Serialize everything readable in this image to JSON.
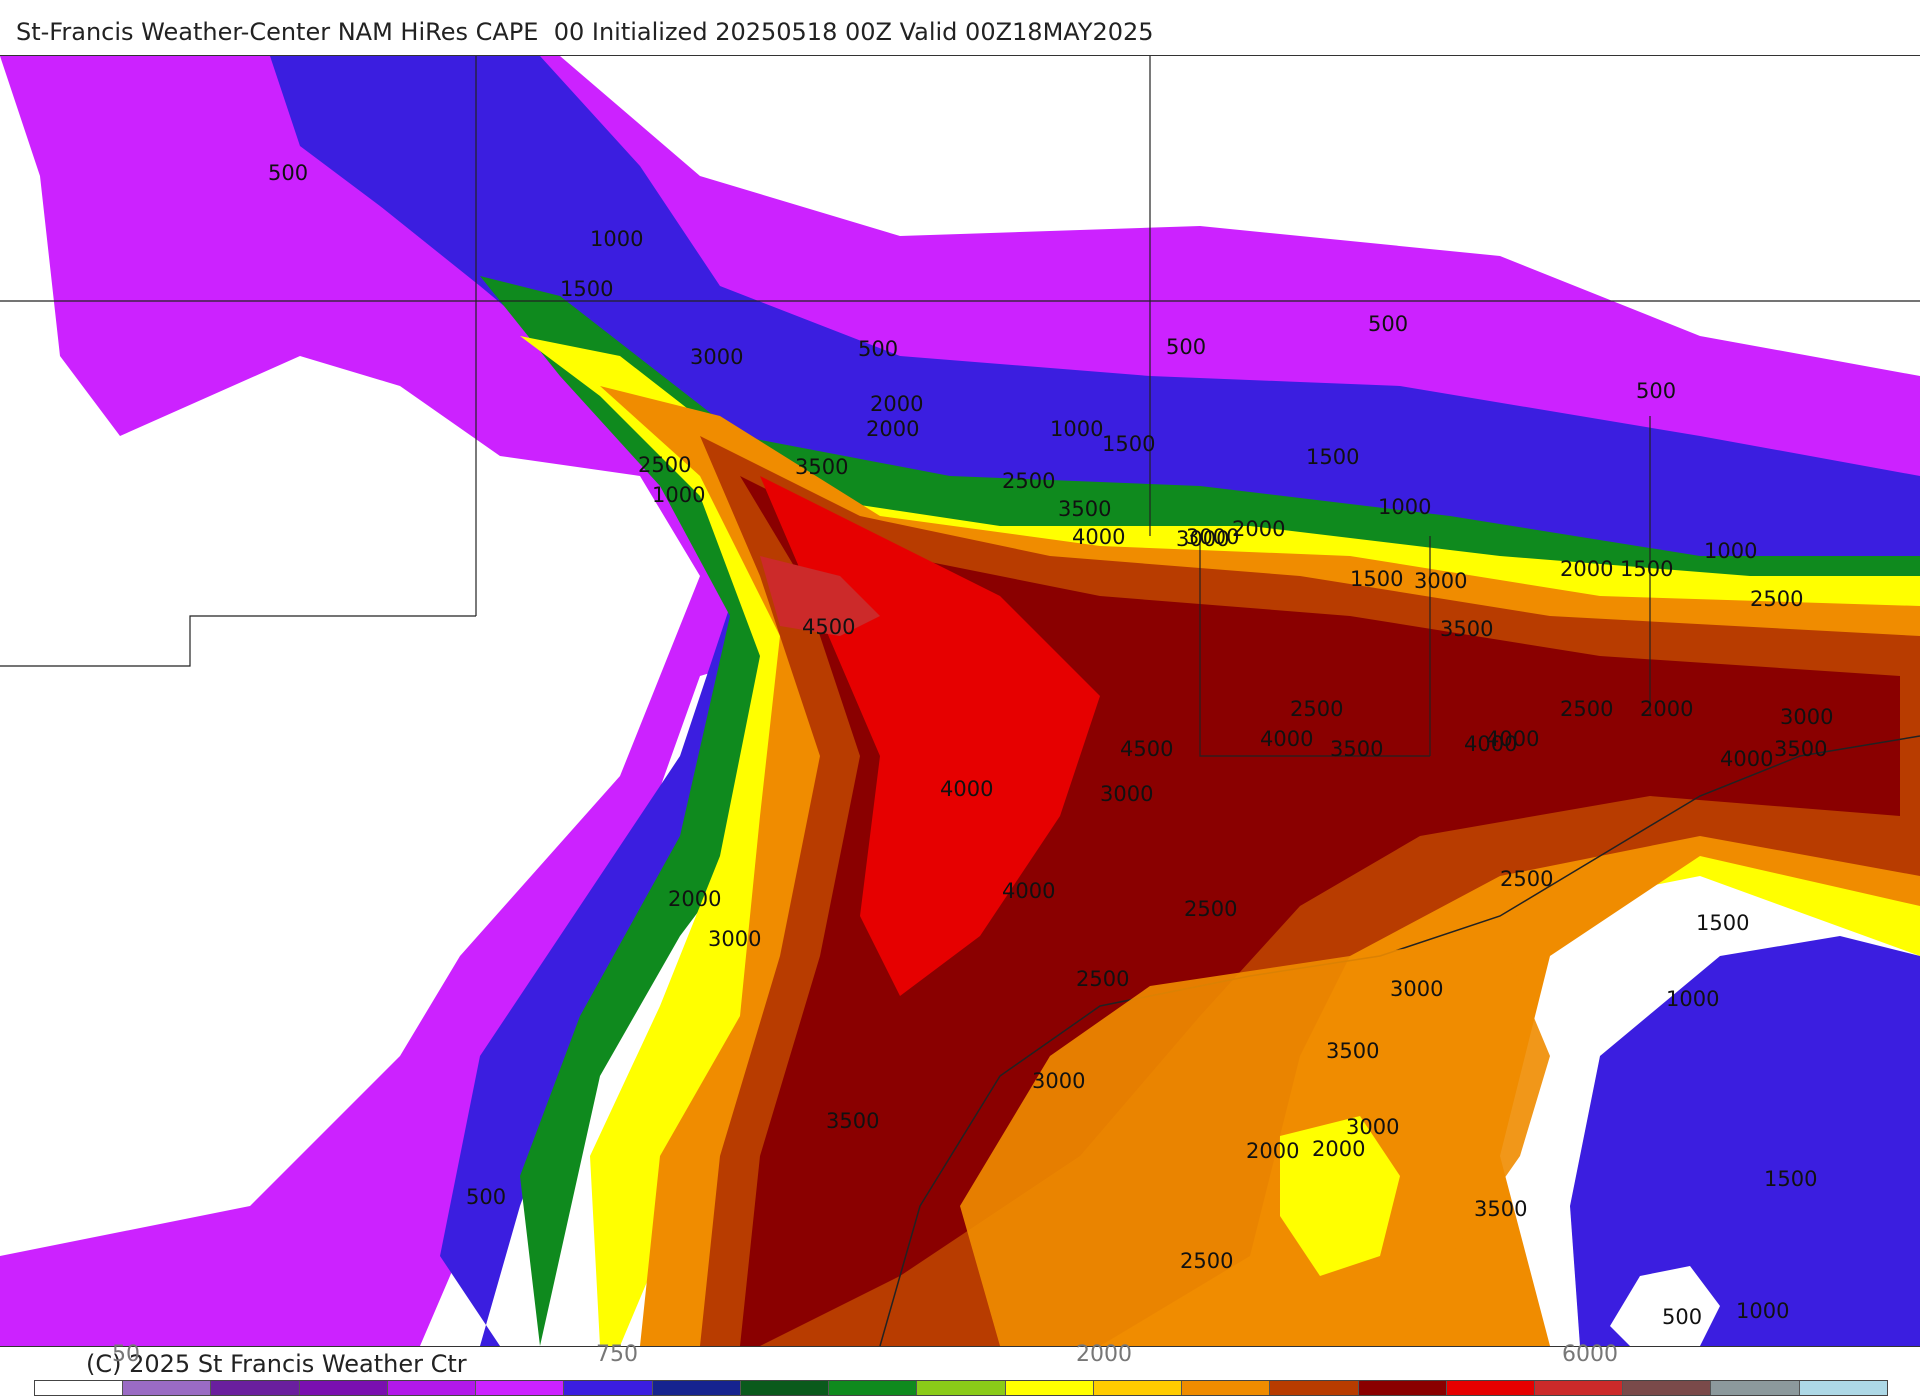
{
  "header": {
    "title": "St-Francis Weather-Center NAM HiRes CAPE  00 Initialized 20250518 00Z Valid 00Z18MAY2025"
  },
  "footer": {
    "copyright": "(C) 2025 St Francis Weather Ctr"
  },
  "colorbar": {
    "labels": [
      "50",
      "750",
      "2000",
      "6000"
    ],
    "colors": [
      "#ffffff",
      "#9a6bc4",
      "#6a1f9e",
      "#7a0fb0",
      "#b218ea",
      "#cc22ff",
      "#3b1ee0",
      "#16238f",
      "#0a5a1c",
      "#0f8a1e",
      "#8acb18",
      "#ffff00",
      "#ffcc00",
      "#f08c00",
      "#b83c00",
      "#8a0000",
      "#e60000",
      "#cc2a2a",
      "#7a4a4a",
      "#8c999c",
      "#add8e6"
    ]
  },
  "map": {
    "contour_labels": [
      "500",
      "1000",
      "1500",
      "2000",
      "2500",
      "3000",
      "3500",
      "4000",
      "4500",
      "500",
      "1000",
      "1500",
      "2000",
      "2500",
      "3000",
      "3500",
      "4000",
      "4500",
      "500",
      "1000",
      "1500",
      "2000",
      "2500",
      "3000",
      "3500",
      "4000",
      "500",
      "1000",
      "1500",
      "2000",
      "2500",
      "3000",
      "3500",
      "4000",
      "500",
      "1000",
      "1500",
      "2000",
      "2500",
      "3000",
      "3500",
      "4000",
      "1500",
      "1000",
      "500",
      "2500",
      "3000",
      "3500",
      "2000",
      "4000",
      "3000",
      "2500",
      "3000",
      "2000",
      "2500",
      "3000",
      "3500",
      "2000",
      "2500",
      "3000",
      "3500",
      "4000",
      "1500",
      "1000",
      "500"
    ]
  }
}
